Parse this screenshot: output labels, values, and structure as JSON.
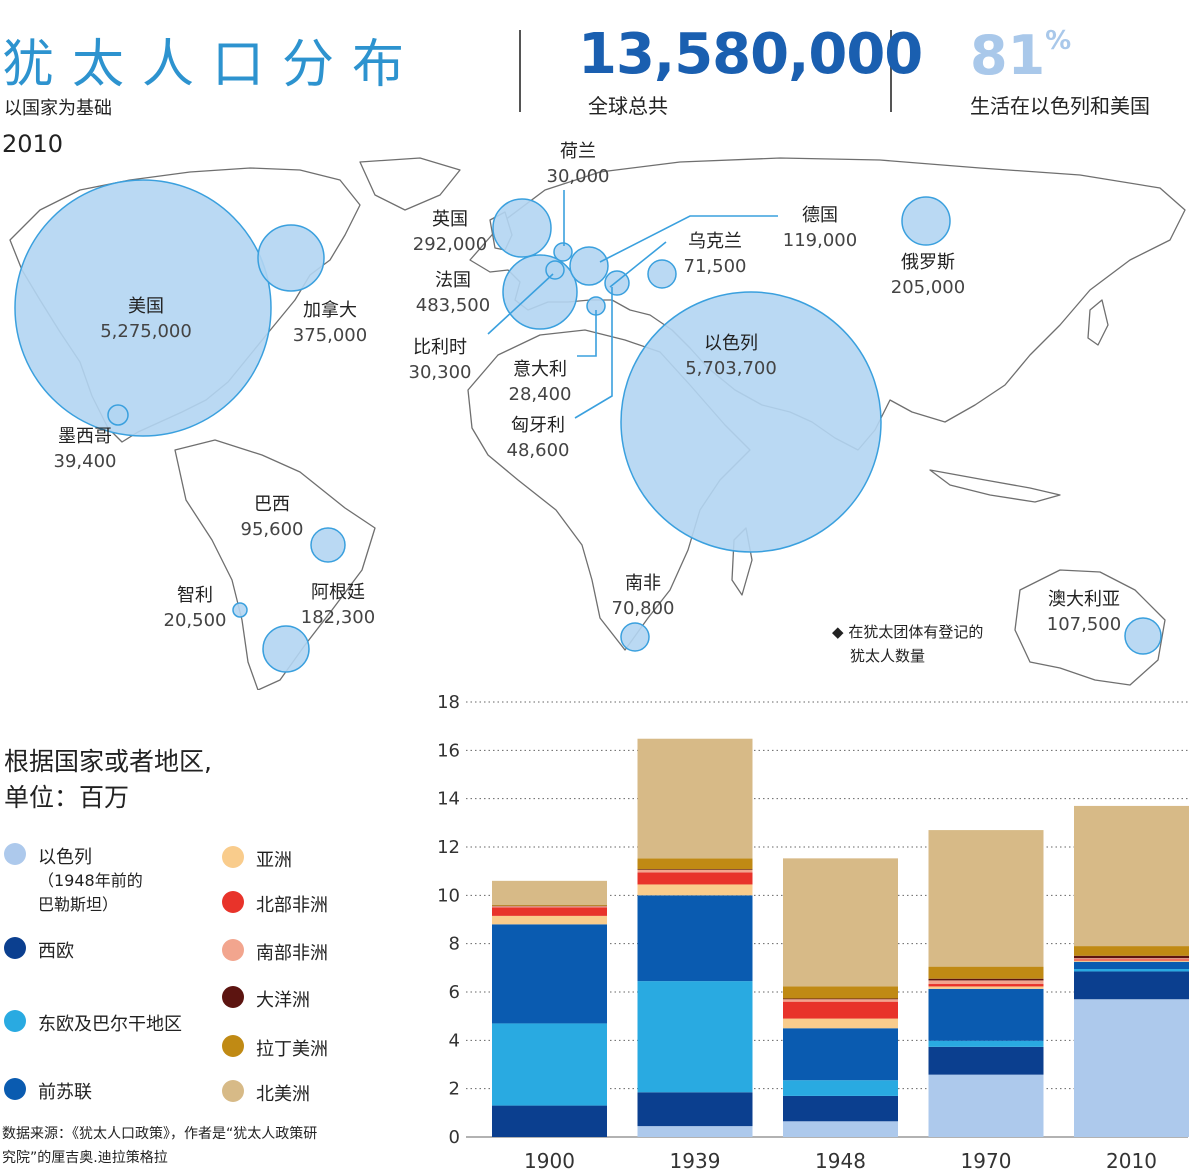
{
  "header": {
    "title": "犹太人口分布",
    "subtitle": "以国家为基础",
    "year": "2010",
    "total_value": "13,580,000",
    "total_caption": "全球总共",
    "share_value": "81",
    "share_unit": "%",
    "share_caption": "生活在以色列和美国"
  },
  "map": {
    "bubble_color": "#b3d5f2",
    "bubble_stroke": "#3aa0de",
    "countries": [
      {
        "name": "美国",
        "value": "5,275,000"
      },
      {
        "name": "加拿大",
        "value": "375,000"
      },
      {
        "name": "墨西哥",
        "value": "39,400"
      },
      {
        "name": "巴西",
        "value": "95,600"
      },
      {
        "name": "智利",
        "value": "20,500"
      },
      {
        "name": "阿根廷",
        "value": "182,300"
      },
      {
        "name": "荷兰",
        "value": "30,000"
      },
      {
        "name": "英国",
        "value": "292,000"
      },
      {
        "name": "法国",
        "value": "483,500"
      },
      {
        "name": "比利时",
        "value": "30,300"
      },
      {
        "name": "意大利",
        "value": "28,400"
      },
      {
        "name": "匈牙利",
        "value": "48,600"
      },
      {
        "name": "德国",
        "value": "119,000"
      },
      {
        "name": "乌克兰",
        "value": "71,500"
      },
      {
        "name": "俄罗斯",
        "value": "205,000"
      },
      {
        "name": "以色列",
        "value": "5,703,700"
      },
      {
        "name": "南非",
        "value": "70,800"
      },
      {
        "name": "澳大利亚",
        "value": "107,500"
      }
    ],
    "note_mark": "◆",
    "note_line1": "在犹太团体有登记的",
    "note_line2": "犹太人数量"
  },
  "legend": {
    "title_line1": "根据国家或者地区,",
    "title_line2": "单位：百万",
    "items": [
      {
        "label": "以色列",
        "sub1": "（1948年前的",
        "sub2": "巴勒斯坦）",
        "color": "#adc9ec"
      },
      {
        "label": "西欧",
        "color": "#0b3f8f"
      },
      {
        "label": "东欧及巴尔干地区",
        "color": "#29aae1"
      },
      {
        "label": "前苏联",
        "color": "#0a5bb0"
      },
      {
        "label": "亚洲",
        "color": "#f9cc8c"
      },
      {
        "label": "北部非洲",
        "color": "#e8332a"
      },
      {
        "label": "南部非洲",
        "color": "#f2a58e"
      },
      {
        "label": "大洋洲",
        "color": "#5c1410"
      },
      {
        "label": "拉丁美洲",
        "color": "#c08a14"
      },
      {
        "label": "北美洲",
        "color": "#d7ba87"
      }
    ]
  },
  "source": {
    "line1": "数据来源：《犹太人口政策》，作者是“犹太人政策研",
    "line2": "究院”的厘吉奥.迪拉策格拉"
  },
  "chart_data": {
    "type": "bar",
    "stacked": true,
    "categories": [
      "1900",
      "1939",
      "1948",
      "1970",
      "2010"
    ],
    "ylim": [
      0,
      18
    ],
    "yticks": [
      0,
      2,
      4,
      6,
      8,
      10,
      12,
      14,
      16,
      18
    ],
    "grid": "dotted horizontal",
    "series": [
      {
        "name": "以色列",
        "color": "#adc9ec",
        "values": [
          0.0,
          0.45,
          0.65,
          2.58,
          5.7
        ]
      },
      {
        "name": "西欧",
        "color": "#0b3f8f",
        "values": [
          1.3,
          1.4,
          1.05,
          1.15,
          1.15
        ]
      },
      {
        "name": "东欧及巴尔干地区",
        "color": "#29aae1",
        "values": [
          3.4,
          4.6,
          0.65,
          0.25,
          0.1
        ]
      },
      {
        "name": "前苏联",
        "color": "#0a5bb0",
        "values": [
          4.1,
          3.55,
          2.15,
          2.15,
          0.3
        ]
      },
      {
        "name": "亚洲",
        "color": "#f9cc8c",
        "values": [
          0.35,
          0.45,
          0.4,
          0.1,
          0.05
        ]
      },
      {
        "name": "北部非洲",
        "color": "#e8332a",
        "values": [
          0.35,
          0.5,
          0.7,
          0.1,
          0.05
        ]
      },
      {
        "name": "南部非洲",
        "color": "#f2a58e",
        "values": [
          0.05,
          0.1,
          0.1,
          0.15,
          0.05
        ]
      },
      {
        "name": "大洋洲",
        "color": "#5c1410",
        "values": [
          0.02,
          0.03,
          0.03,
          0.07,
          0.1
        ]
      },
      {
        "name": "拉丁美洲",
        "color": "#c08a14",
        "values": [
          0.03,
          0.45,
          0.5,
          0.5,
          0.4
        ]
      },
      {
        "name": "北美洲",
        "color": "#d7ba87",
        "values": [
          1.0,
          4.95,
          5.3,
          5.65,
          5.8
        ]
      }
    ]
  }
}
